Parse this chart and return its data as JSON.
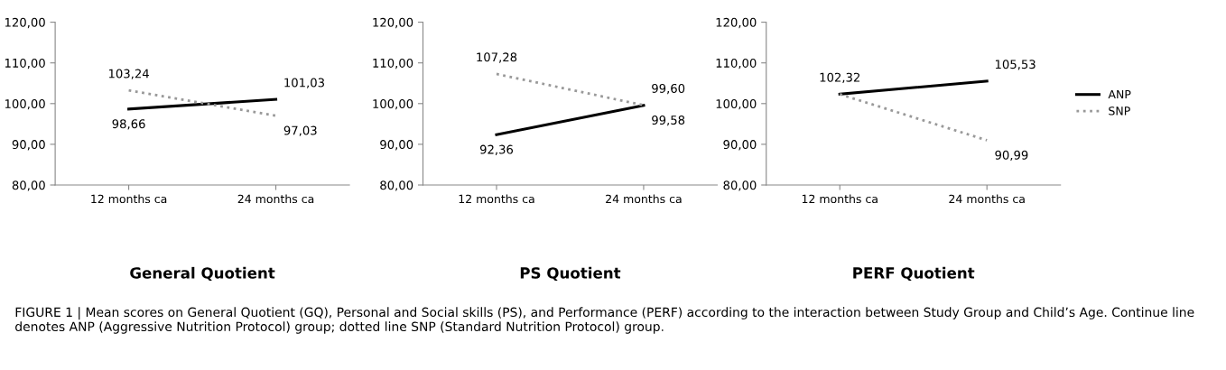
{
  "chart_data": [
    {
      "type": "line",
      "title": "General Quotient",
      "categories": [
        "12 months ca",
        "24 months ca"
      ],
      "ylim": [
        80,
        120
      ],
      "yticks": [
        {
          "value": 80,
          "label": "80,00"
        },
        {
          "value": 90,
          "label": "90,00"
        },
        {
          "value": 100,
          "label": "100,00"
        },
        {
          "value": 110,
          "label": "110,00"
        },
        {
          "value": 120,
          "label": "120,00"
        }
      ],
      "series": [
        {
          "color": "#000000",
          "line_style": "solid",
          "values": [
            98.66,
            101.03
          ],
          "value_labels": [
            "98,66",
            "101,03"
          ]
        },
        {
          "color": "#999999",
          "line_style": "dotted",
          "values": [
            103.24,
            97.03
          ],
          "value_labels": [
            "103,24",
            "97,03"
          ]
        }
      ],
      "legend": false,
      "grid": false,
      "marker": "none"
    },
    {
      "type": "line",
      "title": "PS Quotient",
      "categories": [
        "12 months ca",
        "24 months ca"
      ],
      "ylim": [
        80,
        120
      ],
      "yticks": [
        {
          "value": 80,
          "label": "80,00"
        },
        {
          "value": 90,
          "label": "90,00"
        },
        {
          "value": 100,
          "label": "100,00"
        },
        {
          "value": 110,
          "label": "110,00"
        },
        {
          "value": 120,
          "label": "120,00"
        }
      ],
      "series": [
        {
          "color": "#000000",
          "line_style": "solid",
          "values": [
            92.36,
            99.58
          ],
          "value_labels": [
            "92,36",
            "99,58"
          ]
        },
        {
          "color": "#999999",
          "line_style": "dotted",
          "values": [
            107.28,
            99.6
          ],
          "value_labels": [
            "107,28",
            "99,60"
          ]
        }
      ],
      "legend": false,
      "grid": false,
      "marker": "none"
    },
    {
      "type": "line",
      "title": "PERF Quotient",
      "categories": [
        "12 months ca",
        "24 months ca"
      ],
      "ylim": [
        80,
        120
      ],
      "yticks": [
        {
          "value": 80,
          "label": "80,00"
        },
        {
          "value": 90,
          "label": "90,00"
        },
        {
          "value": 100,
          "label": "100,00"
        },
        {
          "value": 110,
          "label": "110,00"
        },
        {
          "value": 120,
          "label": "120,00"
        }
      ],
      "series": [
        {
          "name": "ANP",
          "color": "#000000",
          "line_style": "solid",
          "values": [
            102.32,
            105.53
          ],
          "value_labels": [
            "102,32",
            "105,53"
          ]
        },
        {
          "name": "SNP",
          "color": "#999999",
          "line_style": "dotted",
          "values": [
            102.3,
            90.99
          ],
          "value_labels": [
            null,
            "90,99"
          ]
        }
      ],
      "legend": "right",
      "grid": false,
      "marker": "none",
      "annotations": [
        "FIGURE 1 | Mean scores on General Quotient (GQ), Personal and Social skills (PS), and Performance (PERF) according to the interaction between Study Group and Child’s Age. Continue line denotes ANP (Aggressive Nutrition Protocol) group; dotted line SNP (Standard Nutrition Protocol) group."
      ]
    }
  ]
}
